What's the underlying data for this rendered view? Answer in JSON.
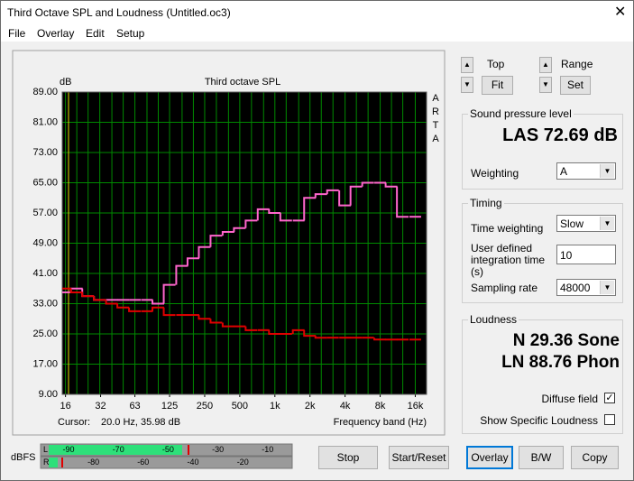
{
  "window": {
    "title": "Third Octave SPL and Loudness (Untitled.oc3)",
    "menu": [
      "File",
      "Overlay",
      "Edit",
      "Setup"
    ]
  },
  "chart_data": {
    "type": "step",
    "title": "Third octave SPL",
    "y_label": "dB",
    "side_label": [
      "A",
      "R",
      "T",
      "A"
    ],
    "x_label": "Frequency band (Hz)",
    "cursor_label": "Cursor:",
    "cursor_value": "20.0 Hz, 35.98 dB",
    "x": [
      16,
      20,
      25,
      31.5,
      40,
      50,
      63,
      80,
      100,
      125,
      160,
      200,
      250,
      315,
      400,
      500,
      630,
      800,
      1000,
      1250,
      1600,
      2000,
      2500,
      3150,
      4000,
      5000,
      6300,
      8000,
      10000,
      12500,
      16000
    ],
    "x_log": true,
    "series": [
      {
        "color": "#ff66cc",
        "values": [
          36,
          37,
          35,
          34,
          34,
          34,
          34,
          34,
          33,
          38,
          43,
          45,
          48,
          51,
          52,
          53,
          55,
          58,
          57,
          55,
          55,
          61,
          62,
          63,
          59,
          64,
          65,
          65,
          64,
          56,
          56
        ]
      },
      {
        "color": "#e00000",
        "values": [
          37,
          36,
          35,
          34,
          33,
          32,
          31,
          31,
          32,
          30,
          30,
          30,
          29,
          28,
          27,
          27,
          26,
          26,
          25,
          25,
          26,
          24.5,
          24,
          24,
          24,
          24,
          24,
          23.5,
          23.5,
          23.5,
          23.5
        ]
      }
    ],
    "xlim": [
      15,
      20000
    ],
    "ylim": [
      9,
      89
    ],
    "yticks": [
      {
        "value": 9,
        "label": "9.00"
      },
      {
        "value": 17,
        "label": "17.00"
      },
      {
        "value": 25,
        "label": "25.00"
      },
      {
        "value": 33,
        "label": "33.00"
      },
      {
        "value": 41,
        "label": "41.00"
      },
      {
        "value": 49,
        "label": "49.00"
      },
      {
        "value": 57,
        "label": "57.00"
      },
      {
        "value": 65,
        "label": "65.00"
      },
      {
        "value": 73,
        "label": "73.00"
      },
      {
        "value": 81,
        "label": "81.00"
      },
      {
        "value": 89,
        "label": "89.00"
      }
    ],
    "xticks": [
      16,
      32,
      63,
      125,
      250,
      500,
      {
        "value": 1000,
        "label": "1k"
      },
      {
        "value": 2000,
        "label": "2k"
      },
      {
        "value": 4000,
        "label": "4k"
      },
      {
        "value": 8000,
        "label": "8k"
      },
      {
        "value": 16000,
        "label": "16k"
      }
    ],
    "grid": true,
    "background": "#000000",
    "grid_color": "#008a00"
  },
  "controls": {
    "top_label": "Top",
    "fit": "Fit",
    "range_label": "Range",
    "set": "Set",
    "spl": {
      "title": "Sound pressure level",
      "reading": "LAS 72.69 dB",
      "weighting_label": "Weighting",
      "weighting": "A"
    },
    "timing": {
      "title": "Timing",
      "time_weighting_label": "Time weighting",
      "time_weighting": "Slow",
      "integration_label": "User defined integration time (s)",
      "integration": "10",
      "sampling_label": "Sampling rate",
      "sampling": "48000"
    },
    "loudness": {
      "title": "Loudness",
      "n": "N 29.36 Sone",
      "ln": "LN 88.76 Phon",
      "diffuse": "Diffuse field",
      "diffuse_checked": true,
      "specific": "Show Specific Loudness",
      "specific_checked": false
    },
    "meter": {
      "label": "dBFS",
      "channels": [
        {
          "name": "L",
          "ticks": [
            -90,
            -70,
            -50,
            -30,
            -10
          ]
        },
        {
          "name": "R",
          "ticks": [
            -80,
            -60,
            -40,
            -20
          ]
        }
      ]
    },
    "buttons": [
      "Stop",
      "Start/Reset",
      "Overlay",
      "B/W",
      "Copy"
    ]
  }
}
